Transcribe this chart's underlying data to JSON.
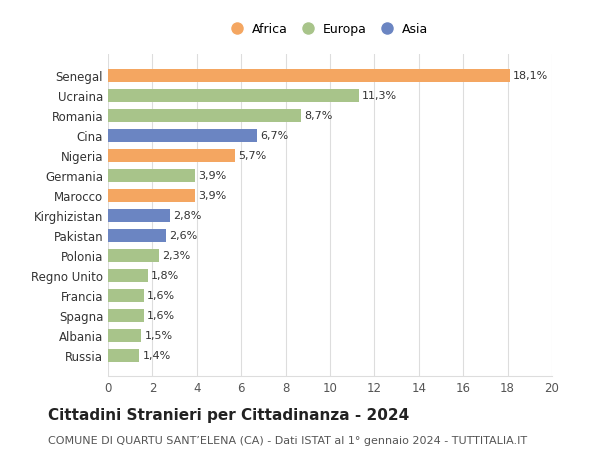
{
  "categories": [
    "Russia",
    "Albania",
    "Spagna",
    "Francia",
    "Regno Unito",
    "Polonia",
    "Pakistan",
    "Kirghizistan",
    "Marocco",
    "Germania",
    "Nigeria",
    "Cina",
    "Romania",
    "Ucraina",
    "Senegal"
  ],
  "values": [
    1.4,
    1.5,
    1.6,
    1.6,
    1.8,
    2.3,
    2.6,
    2.8,
    3.9,
    3.9,
    5.7,
    6.7,
    8.7,
    11.3,
    18.1
  ],
  "labels": [
    "1,4%",
    "1,5%",
    "1,6%",
    "1,6%",
    "1,8%",
    "2,3%",
    "2,6%",
    "2,8%",
    "3,9%",
    "3,9%",
    "5,7%",
    "6,7%",
    "8,7%",
    "11,3%",
    "18,1%"
  ],
  "continents": [
    "Europa",
    "Europa",
    "Europa",
    "Europa",
    "Europa",
    "Europa",
    "Asia",
    "Asia",
    "Africa",
    "Europa",
    "Africa",
    "Asia",
    "Europa",
    "Europa",
    "Africa"
  ],
  "colors": {
    "Africa": "#F4A661",
    "Europa": "#A8C48A",
    "Asia": "#6B85C2"
  },
  "legend_order": [
    "Africa",
    "Europa",
    "Asia"
  ],
  "xlim": [
    0,
    20
  ],
  "xticks": [
    0,
    2,
    4,
    6,
    8,
    10,
    12,
    14,
    16,
    18,
    20
  ],
  "title": "Cittadini Stranieri per Cittadinanza - 2024",
  "subtitle": "COMUNE DI QUARTU SANT’ELENA (CA) - Dati ISTAT al 1° gennaio 2024 - TUTTITALIA.IT",
  "bg_color": "#ffffff",
  "grid_color": "#dddddd",
  "bar_height": 0.65,
  "label_fontsize": 8,
  "title_fontsize": 11,
  "subtitle_fontsize": 8,
  "ytick_fontsize": 8.5,
  "xtick_fontsize": 8.5
}
